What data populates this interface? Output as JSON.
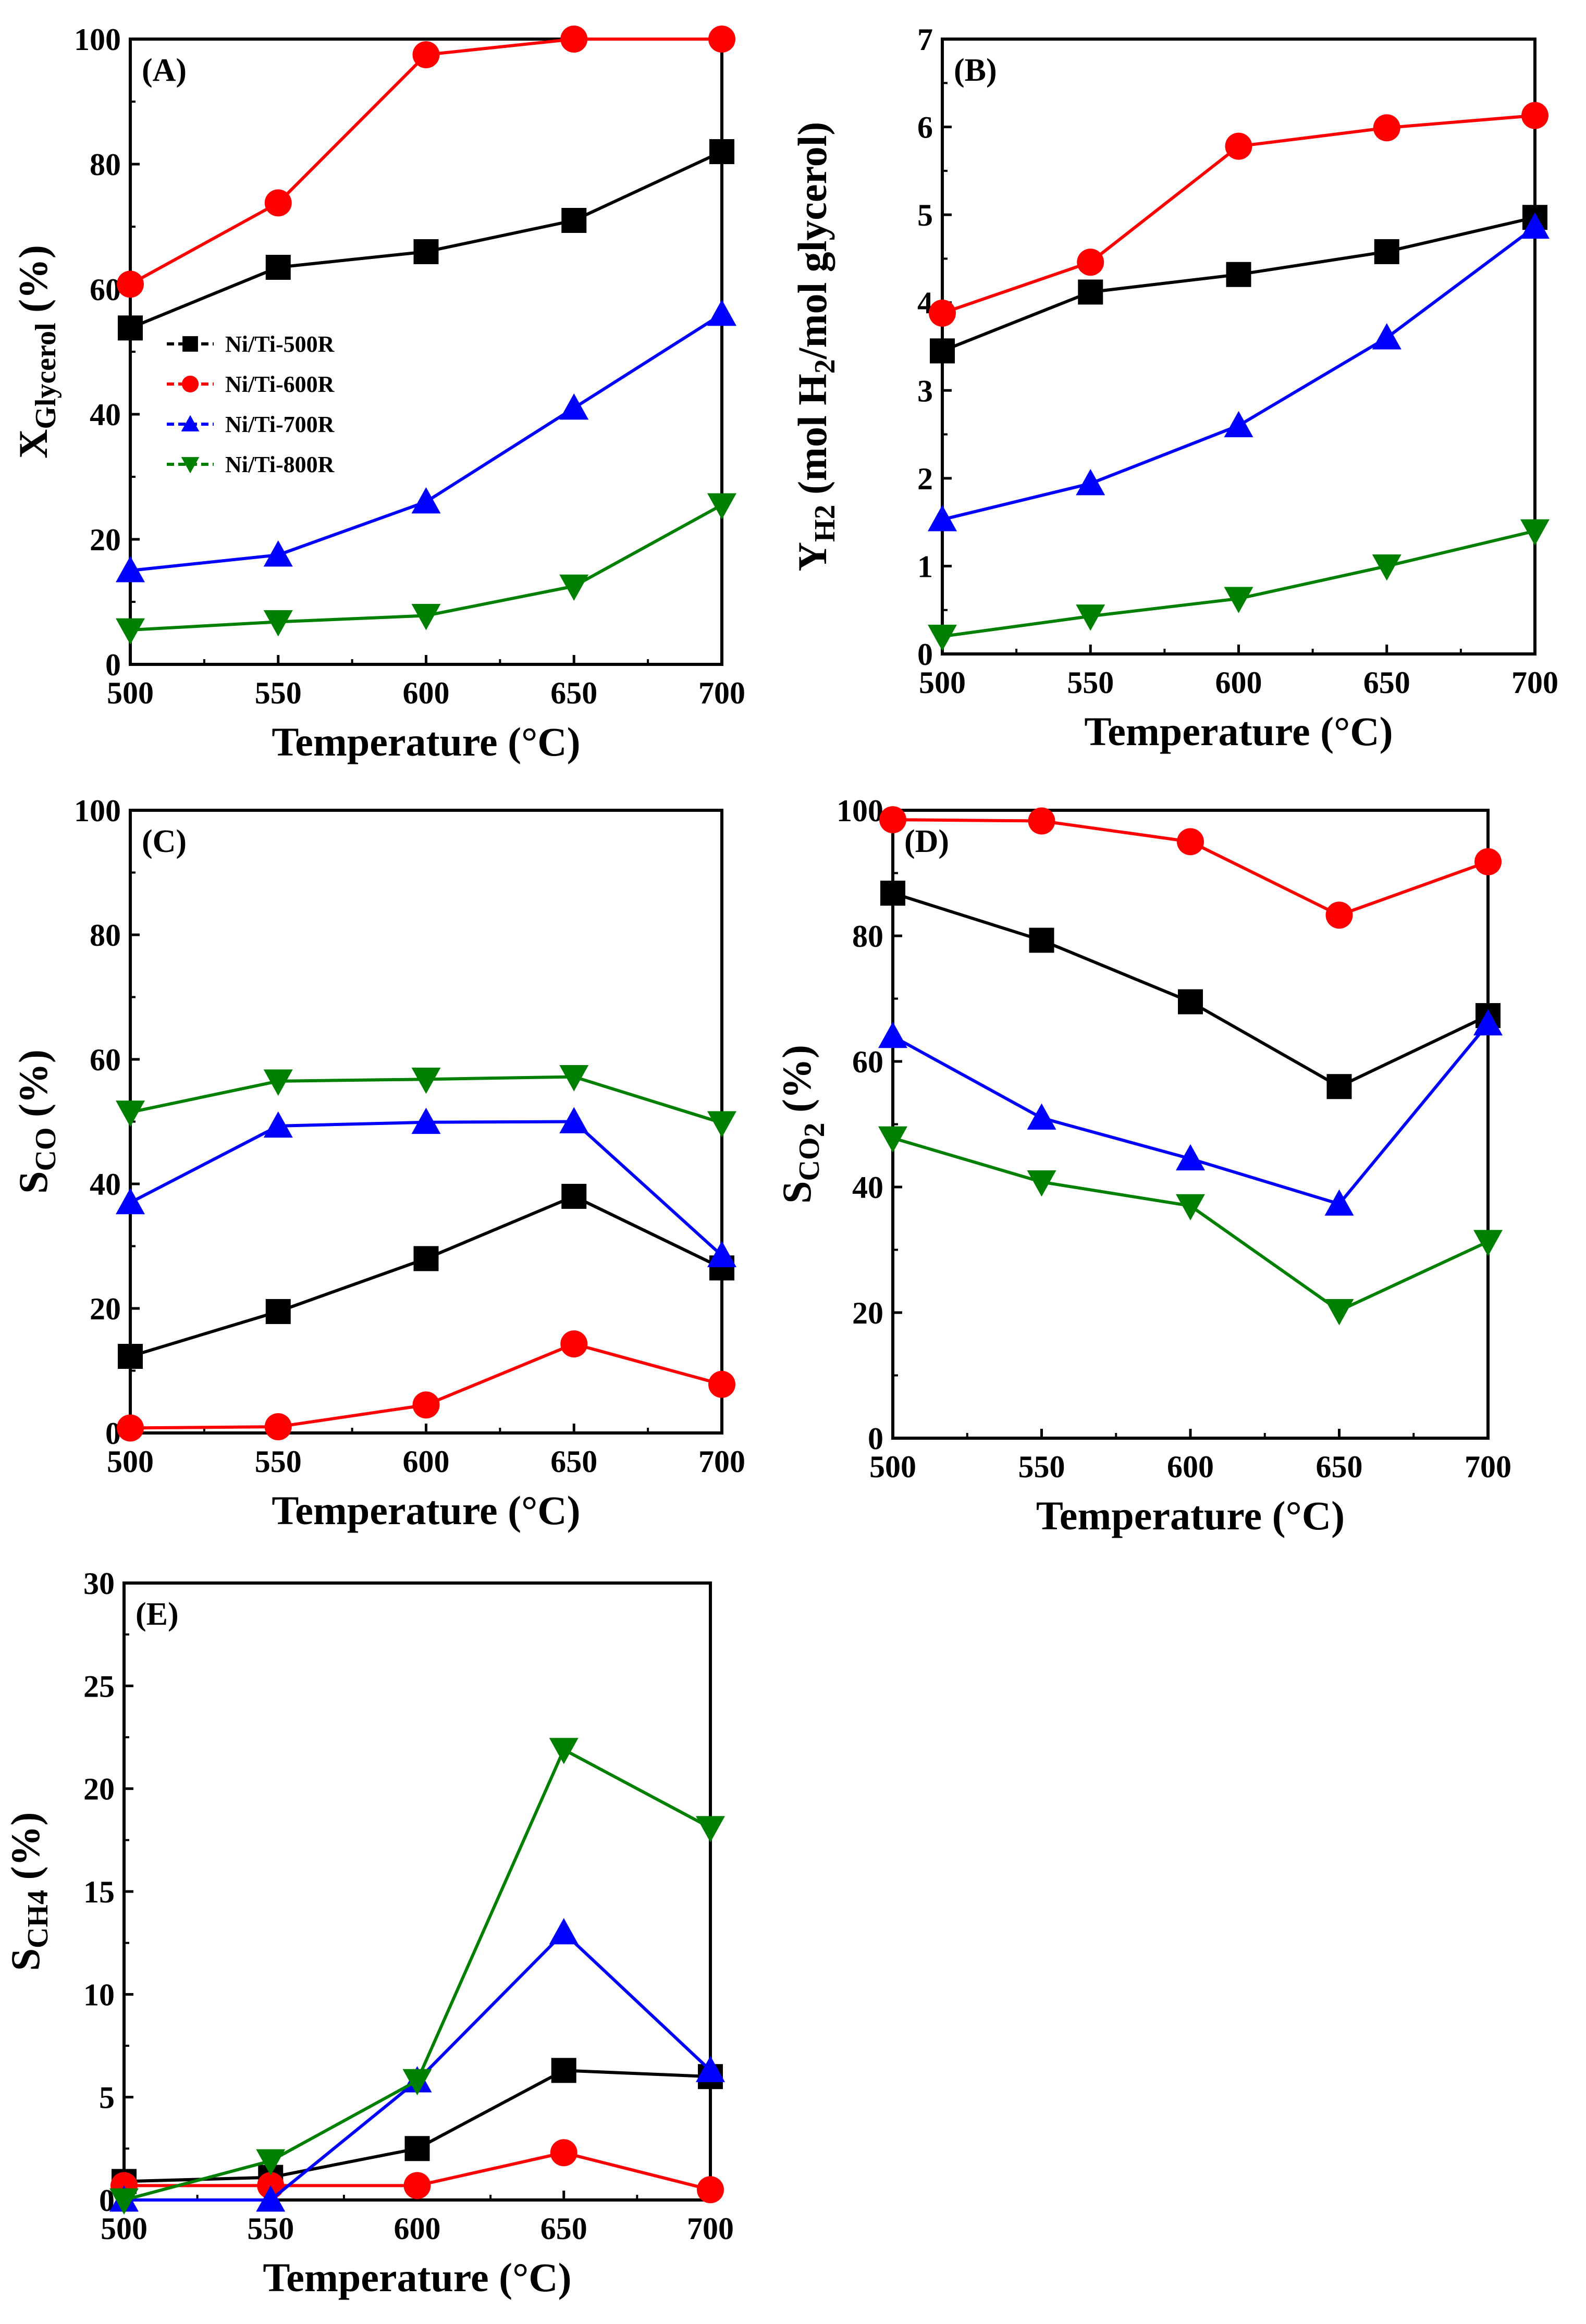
{
  "colors": {
    "Ni/Ti-500R": "#000000",
    "Ni/Ti-600R": "#ff0000",
    "Ni/Ti-700R": "#0000ff",
    "Ni/Ti-800R": "#008000"
  },
  "markers": {
    "Ni/Ti-500R": "square",
    "Ni/Ti-600R": "circle",
    "Ni/Ti-700R": "triangle-up",
    "Ni/Ti-800R": "triangle-down"
  },
  "chart_data": [
    {
      "type": "line",
      "panel_label": "(A)",
      "xlabel": "Temperature (°C)",
      "ylabel": {
        "main": "X",
        "sub": "Glycerol",
        "tail": " (%)"
      },
      "x": [
        500,
        550,
        600,
        650,
        700
      ],
      "xlim": [
        500,
        700
      ],
      "ylim": [
        0,
        100
      ],
      "xticks": [
        500,
        550,
        600,
        650,
        700
      ],
      "yticks": [
        0,
        20,
        40,
        60,
        80,
        100
      ],
      "legend": {
        "placement": "middle-left",
        "entries": [
          "Ni/Ti-500R",
          "Ni/Ti-600R",
          "Ni/Ti-700R",
          "Ni/Ti-800R"
        ]
      },
      "series": [
        {
          "name": "Ni/Ti-500R",
          "values": [
            53.8,
            63.5,
            66.0,
            71.0,
            82.0
          ]
        },
        {
          "name": "Ni/Ti-600R",
          "values": [
            60.8,
            73.8,
            97.5,
            100.0,
            100.0
          ]
        },
        {
          "name": "Ni/Ti-700R",
          "values": [
            15.0,
            17.5,
            26.0,
            41.0,
            56.0
          ]
        },
        {
          "name": "Ni/Ti-800R",
          "values": [
            5.5,
            6.8,
            7.8,
            12.5,
            25.5
          ]
        }
      ]
    },
    {
      "type": "line",
      "panel_label": "(B)",
      "xlabel": "Temperature (°C)",
      "ylabel": {
        "main": "Y",
        "sub": "H2",
        "tail": " (mol H",
        "sub2": "2",
        "tail2": "/mol glycerol)"
      },
      "x": [
        500,
        550,
        600,
        650,
        700
      ],
      "xlim": [
        500,
        700
      ],
      "ylim": [
        0,
        7
      ],
      "xticks": [
        500,
        550,
        600,
        650,
        700
      ],
      "yticks": [
        0,
        1,
        2,
        3,
        4,
        5,
        6,
        7
      ],
      "series": [
        {
          "name": "Ni/Ti-500R",
          "values": [
            3.45,
            4.12,
            4.32,
            4.58,
            4.97
          ]
        },
        {
          "name": "Ni/Ti-600R",
          "values": [
            3.88,
            4.46,
            5.78,
            5.99,
            6.13
          ]
        },
        {
          "name": "Ni/Ti-700R",
          "values": [
            1.53,
            1.94,
            2.6,
            3.6,
            4.86
          ]
        },
        {
          "name": "Ni/Ti-800R",
          "values": [
            0.2,
            0.43,
            0.63,
            1.0,
            1.4
          ]
        }
      ]
    },
    {
      "type": "line",
      "panel_label": "(C)",
      "xlabel": "Temperature (°C)",
      "ylabel": {
        "main": "S",
        "sub": "CO",
        "tail": " (%)"
      },
      "x": [
        500,
        550,
        600,
        650,
        700
      ],
      "xlim": [
        500,
        700
      ],
      "ylim": [
        0,
        100
      ],
      "xticks": [
        500,
        550,
        600,
        650,
        700
      ],
      "yticks": [
        0,
        20,
        40,
        60,
        80,
        100
      ],
      "series": [
        {
          "name": "Ni/Ti-500R",
          "values": [
            12.3,
            19.5,
            28.0,
            38.0,
            26.5
          ]
        },
        {
          "name": "Ni/Ti-600R",
          "values": [
            0.8,
            1.0,
            4.5,
            14.3,
            7.8
          ]
        },
        {
          "name": "Ni/Ti-700R",
          "values": [
            37.0,
            49.3,
            49.9,
            50.0,
            28.5
          ]
        },
        {
          "name": "Ni/Ti-800R",
          "values": [
            51.5,
            56.5,
            56.8,
            57.2,
            49.8
          ]
        }
      ]
    },
    {
      "type": "line",
      "panel_label": "(D)",
      "xlabel": "Temperature (°C)",
      "ylabel": {
        "main": "S",
        "sub": "CO",
        "sub2": "2",
        "tail": " (%)"
      },
      "x": [
        500,
        550,
        600,
        650,
        700
      ],
      "xlim": [
        500,
        700
      ],
      "ylim": [
        0,
        100
      ],
      "xticks": [
        500,
        550,
        600,
        650,
        700
      ],
      "yticks": [
        0,
        20,
        40,
        60,
        80,
        100
      ],
      "series": [
        {
          "name": "Ni/Ti-500R",
          "values": [
            86.8,
            79.3,
            69.5,
            56.0,
            67.3
          ]
        },
        {
          "name": "Ni/Ti-600R",
          "values": [
            98.5,
            98.3,
            95.0,
            83.3,
            91.8
          ]
        },
        {
          "name": "Ni/Ti-700R",
          "values": [
            64.0,
            51.0,
            44.5,
            37.3,
            66.0
          ]
        },
        {
          "name": "Ni/Ti-800R",
          "values": [
            47.8,
            40.8,
            37.0,
            20.3,
            31.3
          ]
        }
      ]
    },
    {
      "type": "line",
      "panel_label": "(E)",
      "xlabel": "Temperature (°C)",
      "ylabel": {
        "main": "S",
        "sub": "CH4",
        "tail": " (%)"
      },
      "x": [
        500,
        550,
        600,
        650,
        700
      ],
      "xlim": [
        500,
        700
      ],
      "ylim": [
        0,
        30
      ],
      "xticks": [
        500,
        550,
        600,
        650,
        700
      ],
      "yticks": [
        0,
        5,
        10,
        15,
        20,
        25,
        30
      ],
      "series": [
        {
          "name": "Ni/Ti-500R",
          "values": [
            0.9,
            1.1,
            2.5,
            6.3,
            6.0
          ]
        },
        {
          "name": "Ni/Ti-600R",
          "values": [
            0.7,
            0.7,
            0.7,
            2.3,
            0.5
          ]
        },
        {
          "name": "Ni/Ti-700R",
          "values": [
            0.0,
            0.0,
            5.8,
            13.0,
            6.3
          ]
        },
        {
          "name": "Ni/Ti-800R",
          "values": [
            0.0,
            1.9,
            5.8,
            21.9,
            18.1
          ]
        }
      ]
    }
  ]
}
